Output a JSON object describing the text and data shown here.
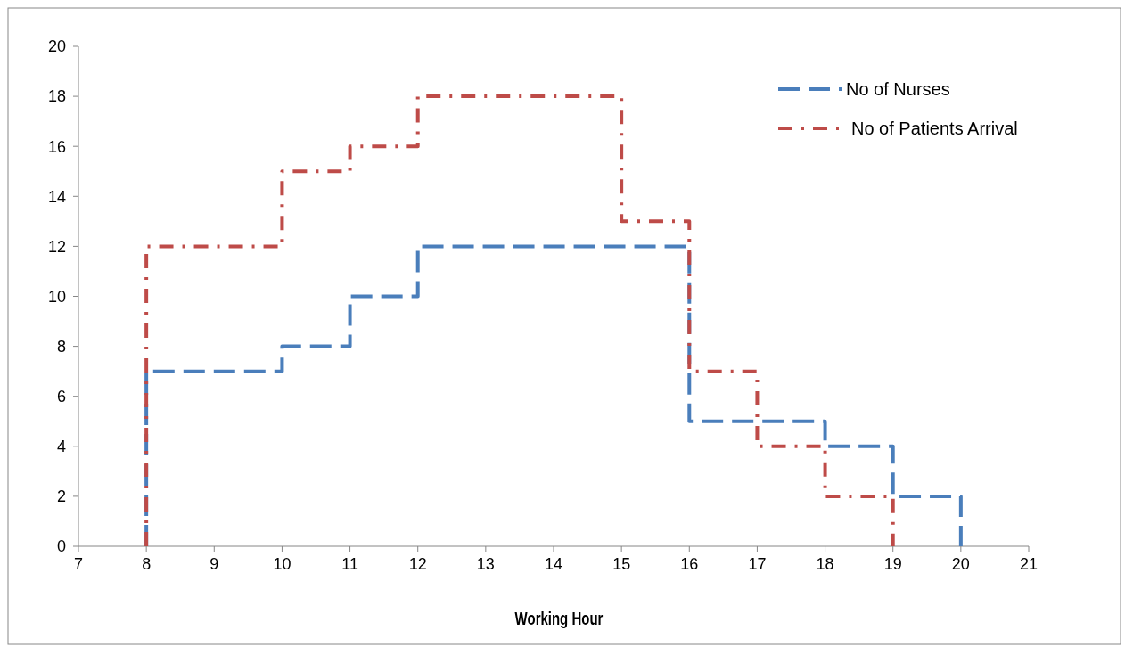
{
  "chart_data": {
    "type": "step",
    "xlabel": "Working Hour",
    "xlim": [
      7,
      21
    ],
    "xticks": [
      7,
      8,
      9,
      10,
      11,
      12,
      13,
      14,
      15,
      16,
      17,
      18,
      19,
      20,
      21
    ],
    "ylim": [
      0,
      20
    ],
    "yticks": [
      0,
      2,
      4,
      6,
      8,
      10,
      12,
      14,
      16,
      18,
      20
    ],
    "grid": false,
    "legend": "top right",
    "marker": "none",
    "series": [
      {
        "name": "No of Nurses",
        "color": "#4a7ebb",
        "line_style": "dashed",
        "x": [
          8,
          8,
          10,
          11,
          12,
          16,
          18,
          19,
          20
        ],
        "values": [
          0,
          7,
          8,
          10,
          12,
          5,
          4,
          2,
          0
        ]
      },
      {
        "name": "No of Patients Arrival",
        "color": "#be4b48",
        "line_style": "dashdot",
        "x": [
          8,
          8,
          10,
          11,
          12,
          15,
          16,
          17,
          18,
          19
        ],
        "values": [
          0,
          12,
          15,
          16,
          18,
          13,
          7,
          4,
          2,
          0
        ]
      }
    ]
  }
}
